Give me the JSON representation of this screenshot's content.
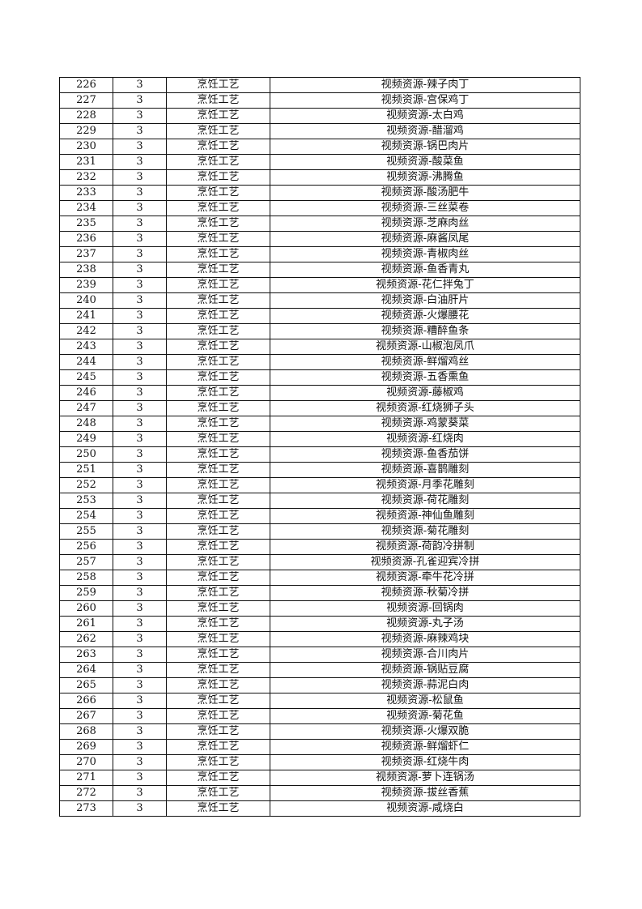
{
  "rows": [
    {
      "no": "226",
      "level": "3",
      "course": "烹饪工艺",
      "resource": "视频资源-辣子肉丁"
    },
    {
      "no": "227",
      "level": "3",
      "course": "烹饪工艺",
      "resource": "视频资源-宫保鸡丁"
    },
    {
      "no": "228",
      "level": "3",
      "course": "烹饪工艺",
      "resource": "视频资源-太白鸡"
    },
    {
      "no": "229",
      "level": "3",
      "course": "烹饪工艺",
      "resource": "视频资源-醋溜鸡"
    },
    {
      "no": "230",
      "level": "3",
      "course": "烹饪工艺",
      "resource": "视频资源-锅巴肉片"
    },
    {
      "no": "231",
      "level": "3",
      "course": "烹饪工艺",
      "resource": "视频资源-酸菜鱼"
    },
    {
      "no": "232",
      "level": "3",
      "course": "烹饪工艺",
      "resource": "视频资源-沸腾鱼"
    },
    {
      "no": "233",
      "level": "3",
      "course": "烹饪工艺",
      "resource": "视频资源-酸汤肥牛"
    },
    {
      "no": "234",
      "level": "3",
      "course": "烹饪工艺",
      "resource": "视频资源-三丝菜卷"
    },
    {
      "no": "235",
      "level": "3",
      "course": "烹饪工艺",
      "resource": "视频资源-芝麻肉丝"
    },
    {
      "no": "236",
      "level": "3",
      "course": "烹饪工艺",
      "resource": "视频资源-麻酱凤尾"
    },
    {
      "no": "237",
      "level": "3",
      "course": "烹饪工艺",
      "resource": "视频资源-青椒肉丝"
    },
    {
      "no": "238",
      "level": "3",
      "course": "烹饪工艺",
      "resource": "视频资源-鱼香青丸"
    },
    {
      "no": "239",
      "level": "3",
      "course": "烹饪工艺",
      "resource": "视频资源-花仁拌兔丁"
    },
    {
      "no": "240",
      "level": "3",
      "course": "烹饪工艺",
      "resource": "视频资源-白油肝片"
    },
    {
      "no": "241",
      "level": "3",
      "course": "烹饪工艺",
      "resource": "视频资源-火爆腰花"
    },
    {
      "no": "242",
      "level": "3",
      "course": "烹饪工艺",
      "resource": "视频资源-糟醉鱼条"
    },
    {
      "no": "243",
      "level": "3",
      "course": "烹饪工艺",
      "resource": "视频资源-山椒泡凤爪"
    },
    {
      "no": "244",
      "level": "3",
      "course": "烹饪工艺",
      "resource": "视频资源-鲜熘鸡丝"
    },
    {
      "no": "245",
      "level": "3",
      "course": "烹饪工艺",
      "resource": "视频资源-五香熏鱼"
    },
    {
      "no": "246",
      "level": "3",
      "course": "烹饪工艺",
      "resource": "视频资源-藤椒鸡"
    },
    {
      "no": "247",
      "level": "3",
      "course": "烹饪工艺",
      "resource": "视频资源-红烧狮子头"
    },
    {
      "no": "248",
      "level": "3",
      "course": "烹饪工艺",
      "resource": "视频资源-鸡蒙葵菜"
    },
    {
      "no": "249",
      "level": "3",
      "course": "烹饪工艺",
      "resource": "视频资源-红烧肉"
    },
    {
      "no": "250",
      "level": "3",
      "course": "烹饪工艺",
      "resource": "视频资源-鱼香茄饼"
    },
    {
      "no": "251",
      "level": "3",
      "course": "烹饪工艺",
      "resource": "视频资源-喜鹊雕刻"
    },
    {
      "no": "252",
      "level": "3",
      "course": "烹饪工艺",
      "resource": "视频资源-月季花雕刻"
    },
    {
      "no": "253",
      "level": "3",
      "course": "烹饪工艺",
      "resource": "视频资源-荷花雕刻"
    },
    {
      "no": "254",
      "level": "3",
      "course": "烹饪工艺",
      "resource": "视频资源-神仙鱼雕刻"
    },
    {
      "no": "255",
      "level": "3",
      "course": "烹饪工艺",
      "resource": "视频资源-菊花雕刻"
    },
    {
      "no": "256",
      "level": "3",
      "course": "烹饪工艺",
      "resource": "视频资源-荷韵冷拼制"
    },
    {
      "no": "257",
      "level": "3",
      "course": "烹饪工艺",
      "resource": "视频资源-孔雀迎宾冷拼"
    },
    {
      "no": "258",
      "level": "3",
      "course": "烹饪工艺",
      "resource": "视频资源-牵牛花冷拼"
    },
    {
      "no": "259",
      "level": "3",
      "course": "烹饪工艺",
      "resource": "视频资源-秋菊冷拼"
    },
    {
      "no": "260",
      "level": "3",
      "course": "烹饪工艺",
      "resource": "视频资源-回锅肉"
    },
    {
      "no": "261",
      "level": "3",
      "course": "烹饪工艺",
      "resource": "视频资源-丸子汤"
    },
    {
      "no": "262",
      "level": "3",
      "course": "烹饪工艺",
      "resource": "视频资源-麻辣鸡块"
    },
    {
      "no": "263",
      "level": "3",
      "course": "烹饪工艺",
      "resource": "视频资源-合川肉片"
    },
    {
      "no": "264",
      "level": "3",
      "course": "烹饪工艺",
      "resource": "视频资源-锅贴豆腐"
    },
    {
      "no": "265",
      "level": "3",
      "course": "烹饪工艺",
      "resource": "视频资源-蒜泥白肉"
    },
    {
      "no": "266",
      "level": "3",
      "course": "烹饪工艺",
      "resource": "视频资源-松鼠鱼"
    },
    {
      "no": "267",
      "level": "3",
      "course": "烹饪工艺",
      "resource": "视频资源-菊花鱼"
    },
    {
      "no": "268",
      "level": "3",
      "course": "烹饪工艺",
      "resource": "视频资源-火爆双脆"
    },
    {
      "no": "269",
      "level": "3",
      "course": "烹饪工艺",
      "resource": "视频资源-鲜熘虾仁"
    },
    {
      "no": "270",
      "level": "3",
      "course": "烹饪工艺",
      "resource": "视频资源-红烧牛肉"
    },
    {
      "no": "271",
      "level": "3",
      "course": "烹饪工艺",
      "resource": "视频资源-萝卜连锅汤"
    },
    {
      "no": "272",
      "level": "3",
      "course": "烹饪工艺",
      "resource": "视频资源-拔丝香蕉"
    },
    {
      "no": "273",
      "level": "3",
      "course": "烹饪工艺",
      "resource": "视频资源-咸烧白"
    }
  ]
}
